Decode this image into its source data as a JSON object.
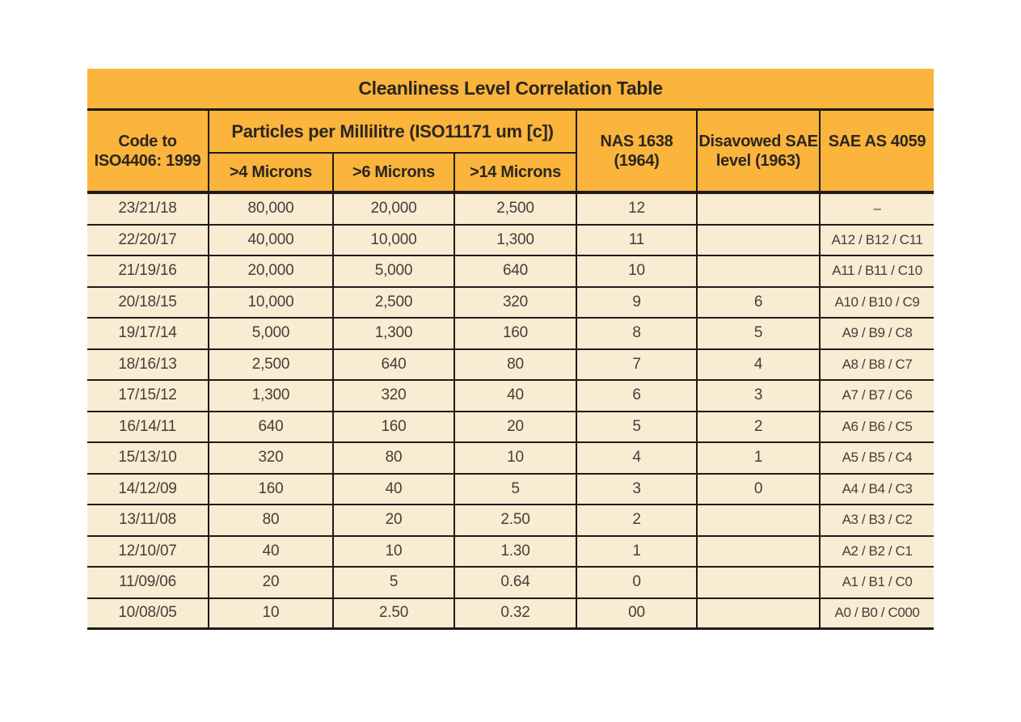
{
  "title": "Cleanliness Level Correlation Table",
  "header": {
    "code_lines": [
      "Code to",
      "ISO4406: 1999"
    ],
    "particles_group": "Particles per Millilitre (ISO11171 um [c])",
    "micron_columns": [
      ">4 Microns",
      ">6 Microns",
      ">14 Microns"
    ],
    "nas_lines": [
      "NAS 1638",
      "(1964)"
    ],
    "sae_level_lines": [
      "Disavowed SAE",
      "level (1963)"
    ],
    "sae_as": "SAE AS 4059"
  },
  "rows": [
    {
      "code": "23/21/18",
      "m4": "80,000",
      "m6": "20,000",
      "m14": "2,500",
      "nas": "12",
      "sae_level": "",
      "sae_as": "–"
    },
    {
      "code": "22/20/17",
      "m4": "40,000",
      "m6": "10,000",
      "m14": "1,300",
      "nas": "11",
      "sae_level": "",
      "sae_as": "A12 / B12 / C11"
    },
    {
      "code": "21/19/16",
      "m4": "20,000",
      "m6": "5,000",
      "m14": "640",
      "nas": "10",
      "sae_level": "",
      "sae_as": "A11 / B11 / C10"
    },
    {
      "code": "20/18/15",
      "m4": "10,000",
      "m6": "2,500",
      "m14": "320",
      "nas": "9",
      "sae_level": "6",
      "sae_as": "A10 / B10 / C9"
    },
    {
      "code": "19/17/14",
      "m4": "5,000",
      "m6": "1,300",
      "m14": "160",
      "nas": "8",
      "sae_level": "5",
      "sae_as": "A9 / B9 / C8"
    },
    {
      "code": "18/16/13",
      "m4": "2,500",
      "m6": "640",
      "m14": "80",
      "nas": "7",
      "sae_level": "4",
      "sae_as": "A8 / B8 / C7"
    },
    {
      "code": "17/15/12",
      "m4": "1,300",
      "m6": "320",
      "m14": "40",
      "nas": "6",
      "sae_level": "3",
      "sae_as": "A7 / B7 / C6"
    },
    {
      "code": "16/14/11",
      "m4": "640",
      "m6": "160",
      "m14": "20",
      "nas": "5",
      "sae_level": "2",
      "sae_as": "A6 / B6 / C5"
    },
    {
      "code": "15/13/10",
      "m4": "320",
      "m6": "80",
      "m14": "10",
      "nas": "4",
      "sae_level": "1",
      "sae_as": "A5 / B5 / C4"
    },
    {
      "code": "14/12/09",
      "m4": "160",
      "m6": "40",
      "m14": "5",
      "nas": "3",
      "sae_level": "0",
      "sae_as": "A4 / B4 / C3"
    },
    {
      "code": "13/11/08",
      "m4": "80",
      "m6": "20",
      "m14": "2.50",
      "nas": "2",
      "sae_level": "",
      "sae_as": "A3 / B3 / C2"
    },
    {
      "code": "12/10/07",
      "m4": "40",
      "m6": "10",
      "m14": "1.30",
      "nas": "1",
      "sae_level": "",
      "sae_as": "A2 / B2 / C1"
    },
    {
      "code": "11/09/06",
      "m4": "20",
      "m6": "5",
      "m14": "0.64",
      "nas": "0",
      "sae_level": "",
      "sae_as": "A1 / B1 / C0"
    },
    {
      "code": "10/08/05",
      "m4": "10",
      "m6": "2.50",
      "m14": "0.32",
      "nas": "00",
      "sae_level": "",
      "sae_as": "A0 / B0 / C000"
    }
  ],
  "colors": {
    "orange": "#FBB43C",
    "cream": "#FAECD2",
    "line": "#1D1B19",
    "header_text": "#2B2620",
    "body_text": "#433F39"
  }
}
